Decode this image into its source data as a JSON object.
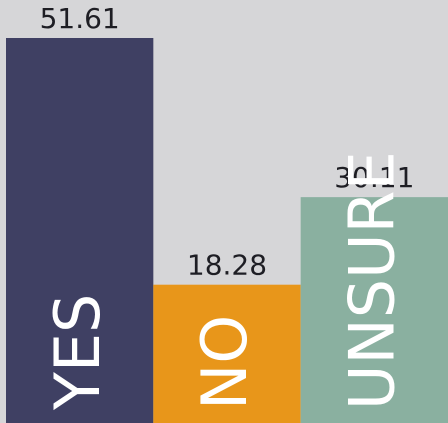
{
  "chart_data": {
    "type": "bar",
    "categories": [
      "YES",
      "NO",
      "UNSURE"
    ],
    "values": [
      51.61,
      18.28,
      30.11
    ],
    "colors": [
      "#3f4063",
      "#e8961a",
      "#8ab0a0"
    ]
  }
}
